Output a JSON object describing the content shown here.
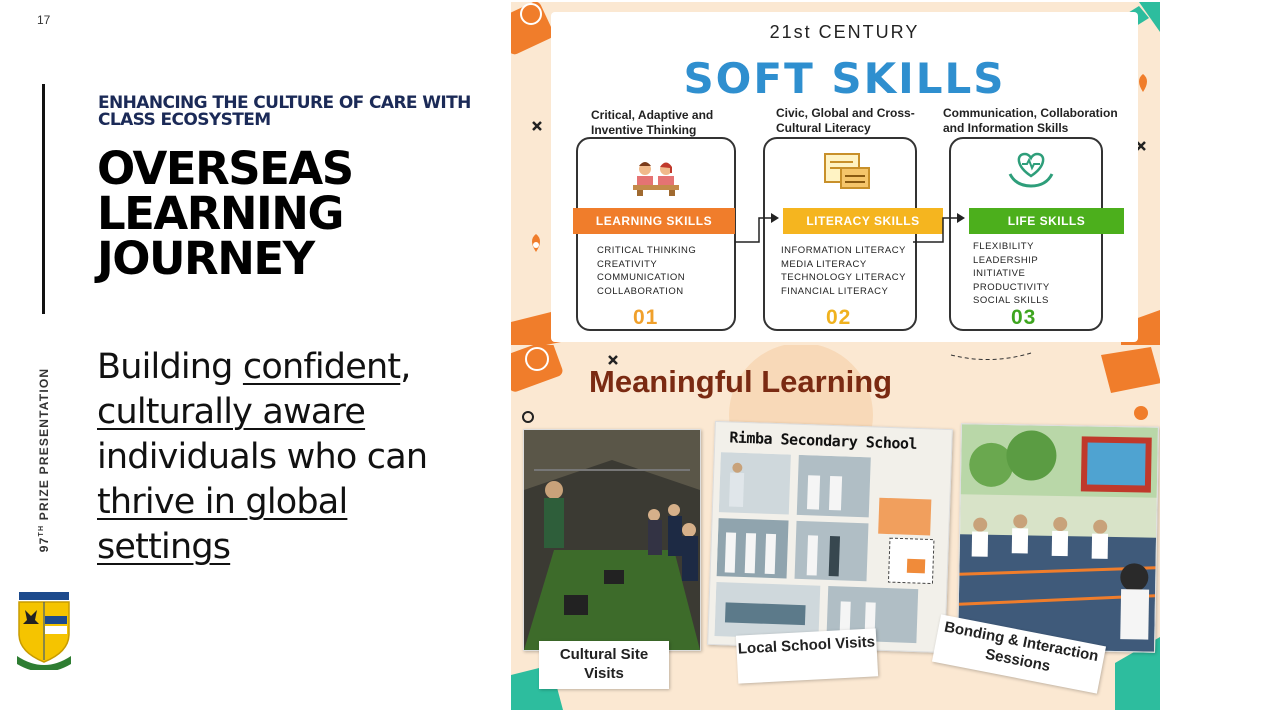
{
  "slide": {
    "page_number": "17",
    "subtitle": "ENHANCING THE CULTURE OF CARE WITH CLASS ECOSYSTEM",
    "title": "OVERSEAS LEARNING JOURNEY",
    "body": {
      "t1": "Building ",
      "u1": "confident",
      "t2": ", ",
      "u2": "culturally aware",
      "t3": " individuals who can ",
      "u3": "thrive in global settings"
    },
    "vertical_label": {
      "prefix": "97",
      "sup": "TH",
      "rest": " PRIZE PRESENTATION"
    }
  },
  "soft_skills": {
    "overline": "21st CENTURY",
    "title": "SOFT SKILLS",
    "columns": [
      {
        "heading": "Critical, Adaptive and Inventive Thinking",
        "band": "LEARNING SKILLS",
        "band_color": "#f07d2b",
        "items": [
          "CRITICAL THINKING",
          "CREATIVITY",
          "COMMUNICATION",
          "COLLABORATION"
        ],
        "number": "01",
        "number_color": "#f0a02b"
      },
      {
        "heading": "Civic, Global and Cross-Cultural Literacy",
        "band": "LITERACY SKILLS",
        "band_color": "#f5b51f",
        "items": [
          "INFORMATION LITERACY",
          "MEDIA LITERACY",
          "TECHNOLOGY LITERACY",
          "FINANCIAL LITERACY"
        ],
        "number": "02",
        "number_color": "#f0b21f"
      },
      {
        "heading": "Communication, Collaboration and Information Skills",
        "band": "LIFE SKILLS",
        "band_color": "#4caf1c",
        "items": [
          "FLEXIBILITY",
          "LEADERSHIP",
          "INITIATIVE",
          "PRODUCTIVITY",
          "SOCIAL SKILLS"
        ],
        "number": "03",
        "number_color": "#3ea51f"
      }
    ]
  },
  "meaningful": {
    "title": "Meaningful Learning",
    "school_banner": "Rimba Secondary School",
    "captions": {
      "cultural": "Cultural Site Visits",
      "local": "Local School Visits",
      "bonding": "Bonding & Interaction Sessions"
    }
  }
}
